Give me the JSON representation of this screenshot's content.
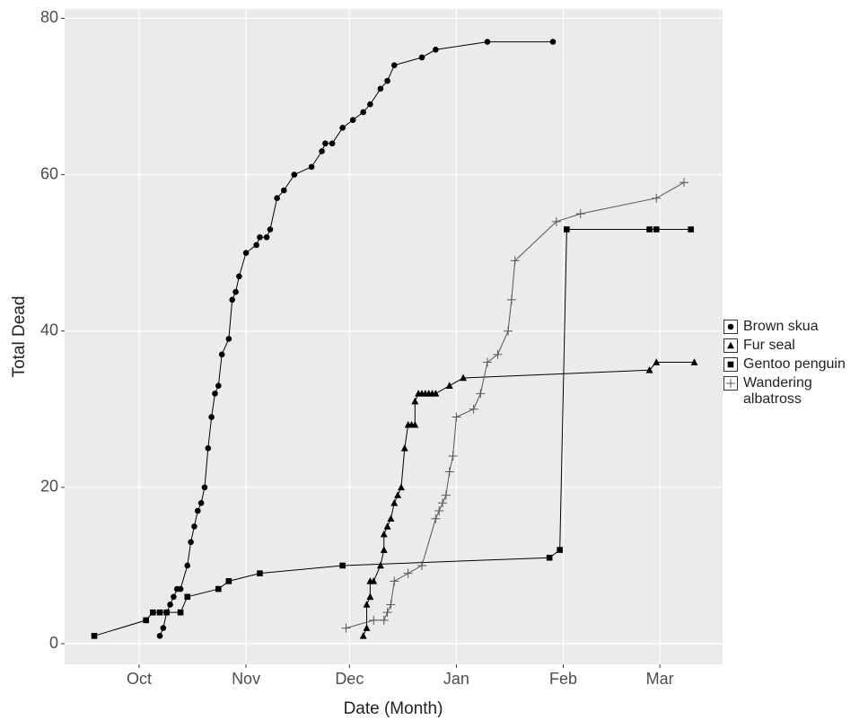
{
  "chart_data": {
    "type": "line",
    "xlabel": "Date (Month)",
    "ylabel": "Total Dead",
    "xlim": [
      -21.6,
      169.2
    ],
    "ylim": [
      -2.64,
      81.2
    ],
    "xticks": [
      {
        "value": 0,
        "label": "Oct"
      },
      {
        "value": 31,
        "label": "Nov"
      },
      {
        "value": 61,
        "label": "Dec"
      },
      {
        "value": 92,
        "label": "Jan"
      },
      {
        "value": 123,
        "label": "Feb"
      },
      {
        "value": 151,
        "label": "Mar"
      }
    ],
    "yticks": [
      0,
      20,
      40,
      60,
      80
    ],
    "grid": true,
    "legend": "right",
    "series": [
      {
        "name": "Brown skua",
        "color": "#000000",
        "marker": "circle",
        "x": [
          6,
          7,
          8,
          9,
          10,
          11,
          12,
          14,
          15,
          16,
          17,
          18,
          19,
          20,
          21,
          22,
          23,
          24,
          26,
          27,
          28,
          29,
          31,
          34,
          35,
          37,
          38,
          40,
          42,
          45,
          50,
          53,
          54,
          56,
          59,
          62,
          65,
          67,
          70,
          72,
          74,
          82,
          86,
          101,
          120
        ],
        "values": [
          1,
          2,
          4,
          5,
          6,
          7,
          7,
          10,
          13,
          15,
          17,
          18,
          20,
          25,
          29,
          32,
          33,
          37,
          39,
          44,
          45,
          47,
          50,
          51,
          52,
          52,
          53,
          57,
          58,
          60,
          61,
          63,
          64,
          64,
          66,
          67,
          68,
          69,
          71,
          72,
          74,
          75,
          76,
          77,
          77
        ]
      },
      {
        "name": "Fur seal",
        "color": "#000000",
        "marker": "triangle",
        "x": [
          65,
          66,
          66,
          67,
          67,
          68,
          70,
          71,
          71,
          72,
          73,
          74,
          75,
          76,
          77,
          78,
          79,
          80,
          80,
          81,
          82,
          83,
          84,
          85,
          86,
          90,
          94,
          148,
          150,
          161
        ],
        "values": [
          1,
          2,
          5,
          6,
          8,
          8,
          10,
          12,
          14,
          15,
          16,
          18,
          19,
          20,
          25,
          28,
          28,
          28,
          31,
          32,
          32,
          32,
          32,
          32,
          32,
          33,
          34,
          35,
          36,
          36
        ]
      },
      {
        "name": "Gentoo penguin",
        "color": "#000000",
        "marker": "square",
        "x": [
          -13,
          2,
          4,
          6,
          8,
          12,
          14,
          23,
          26,
          35,
          59,
          119,
          122,
          124,
          148,
          150,
          160
        ],
        "values": [
          1,
          3,
          4,
          4,
          4,
          4,
          6,
          7,
          8,
          9,
          10,
          11,
          12,
          53,
          53,
          53,
          53
        ]
      },
      {
        "name": "Wandering albatross",
        "color": "#555555",
        "marker": "plus",
        "x": [
          60,
          68,
          71,
          72,
          73,
          74,
          78,
          82,
          86,
          87,
          88,
          89,
          90,
          91,
          92,
          97,
          99,
          101,
          104,
          107,
          108,
          109,
          121,
          128,
          150,
          158
        ],
        "values": [
          2,
          3,
          3,
          4,
          5,
          8,
          9,
          10,
          16,
          17,
          18,
          19,
          22,
          24,
          29,
          30,
          32,
          36,
          37,
          40,
          44,
          49,
          54,
          55,
          57,
          59
        ]
      }
    ]
  }
}
